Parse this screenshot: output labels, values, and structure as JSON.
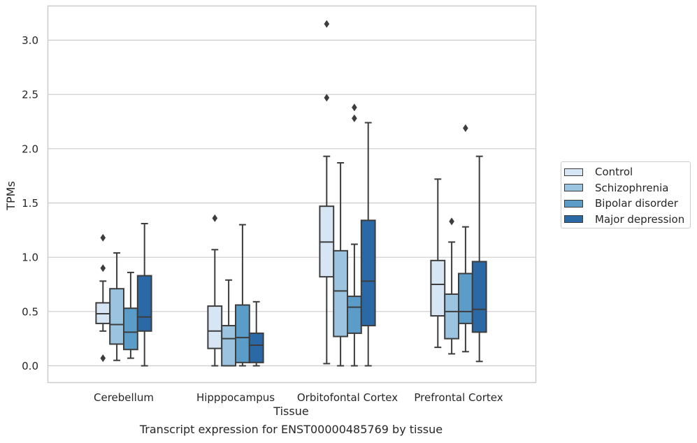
{
  "chart_data": {
    "type": "box",
    "xlabel": "Tissue",
    "ylabel": "TPMs",
    "caption": "Transcript expression for ENST00000485769 by tissue",
    "ylim": [
      -0.15,
      3.3
    ],
    "yticks": [
      0.0,
      0.5,
      1.0,
      1.5,
      2.0,
      2.5,
      3.0
    ],
    "ytick_labels": [
      "0.0",
      "0.5",
      "1.0",
      "1.5",
      "2.0",
      "2.5",
      "3.0"
    ],
    "grid": "horizontal",
    "legend_position": "right",
    "categories": [
      "Cerebellum",
      "Hipppocampus",
      "Orbitofontal Cortex",
      "Prefrontal Cortex"
    ],
    "series": [
      {
        "name": "Control",
        "color": "#d7e6f4",
        "boxes": [
          {
            "whisker_low": 0.32,
            "q1": 0.39,
            "median": 0.48,
            "q3": 0.58,
            "whisker_high": 0.78,
            "outliers": [
              1.18,
              0.9,
              0.07
            ]
          },
          {
            "whisker_low": 0.0,
            "q1": 0.16,
            "median": 0.32,
            "q3": 0.55,
            "whisker_high": 1.07,
            "outliers": [
              1.36
            ]
          },
          {
            "whisker_low": 0.02,
            "q1": 0.82,
            "median": 1.14,
            "q3": 1.47,
            "whisker_high": 1.93,
            "outliers": [
              3.15,
              2.47
            ]
          },
          {
            "whisker_low": 0.17,
            "q1": 0.46,
            "median": 0.75,
            "q3": 0.97,
            "whisker_high": 1.72,
            "outliers": []
          }
        ]
      },
      {
        "name": "Schizophrenia",
        "color": "#9ac4df",
        "boxes": [
          {
            "whisker_low": 0.05,
            "q1": 0.2,
            "median": 0.38,
            "q3": 0.71,
            "whisker_high": 1.04,
            "outliers": []
          },
          {
            "whisker_low": 0.0,
            "q1": 0.0,
            "median": 0.25,
            "q3": 0.37,
            "whisker_high": 0.79,
            "outliers": []
          },
          {
            "whisker_low": 0.0,
            "q1": 0.27,
            "median": 0.69,
            "q3": 1.06,
            "whisker_high": 1.87,
            "outliers": []
          },
          {
            "whisker_low": 0.11,
            "q1": 0.25,
            "median": 0.5,
            "q3": 0.66,
            "whisker_high": 1.14,
            "outliers": [
              1.33
            ]
          }
        ]
      },
      {
        "name": "Bipolar disorder",
        "color": "#5b9cc9",
        "boxes": [
          {
            "whisker_low": 0.07,
            "q1": 0.15,
            "median": 0.31,
            "q3": 0.53,
            "whisker_high": 0.86,
            "outliers": []
          },
          {
            "whisker_low": 0.0,
            "q1": 0.03,
            "median": 0.26,
            "q3": 0.56,
            "whisker_high": 1.3,
            "outliers": []
          },
          {
            "whisker_low": 0.0,
            "q1": 0.3,
            "median": 0.54,
            "q3": 0.64,
            "whisker_high": 1.12,
            "outliers": [
              2.38,
              2.28
            ]
          },
          {
            "whisker_low": 0.13,
            "q1": 0.39,
            "median": 0.5,
            "q3": 0.85,
            "whisker_high": 1.28,
            "outliers": [
              2.19
            ]
          }
        ]
      },
      {
        "name": "Major depression",
        "color": "#2a68a6",
        "boxes": [
          {
            "whisker_low": 0.0,
            "q1": 0.32,
            "median": 0.45,
            "q3": 0.83,
            "whisker_high": 1.31,
            "outliers": []
          },
          {
            "whisker_low": 0.0,
            "q1": 0.03,
            "median": 0.19,
            "q3": 0.3,
            "whisker_high": 0.59,
            "outliers": []
          },
          {
            "whisker_low": 0.0,
            "q1": 0.37,
            "median": 0.78,
            "q3": 1.34,
            "whisker_high": 2.24,
            "outliers": []
          },
          {
            "whisker_low": 0.04,
            "q1": 0.31,
            "median": 0.52,
            "q3": 0.96,
            "whisker_high": 1.93,
            "outliers": []
          }
        ]
      }
    ]
  }
}
